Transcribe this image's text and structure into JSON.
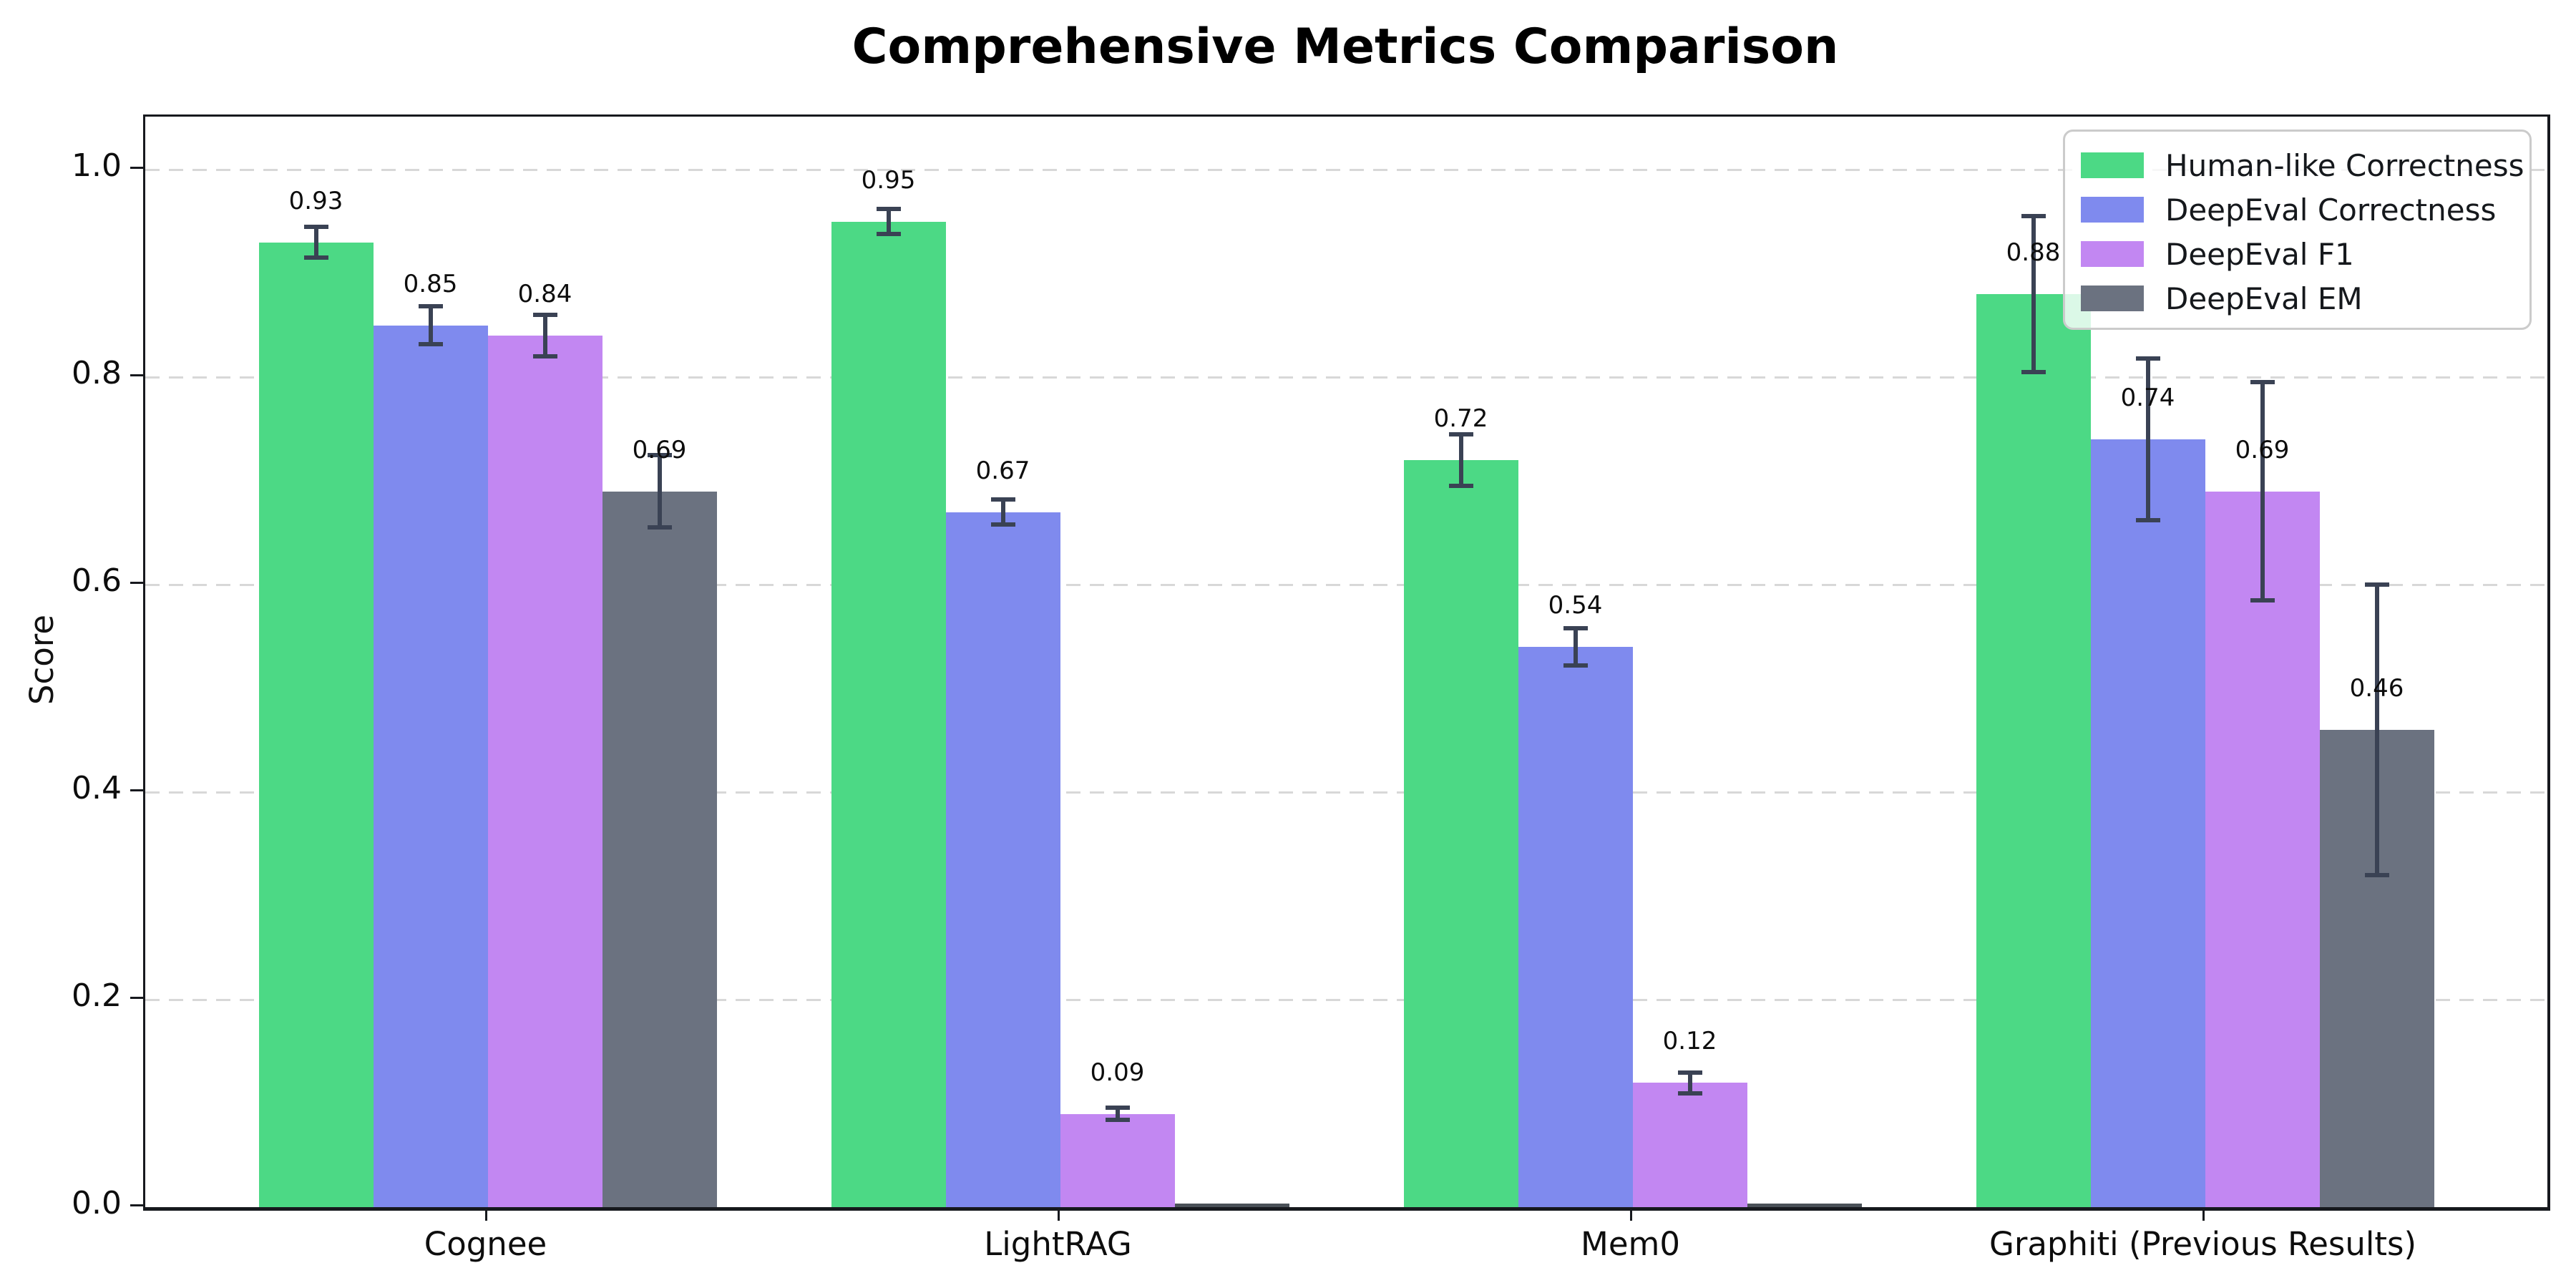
{
  "chart_data": {
    "type": "bar",
    "title": "Comprehensive Metrics Comparison",
    "xlabel": "",
    "ylabel": "Score",
    "categories": [
      "Cognee",
      "LightRAG",
      "Mem0",
      "Graphiti (Previous Results)"
    ],
    "series": [
      {
        "name": "Human-like Correctness",
        "color": "#4cd985",
        "values": [
          0.93,
          0.95,
          0.72,
          0.88
        ],
        "errors": [
          0.015,
          0.012,
          0.025,
          0.075
        ],
        "labels": [
          "0.93",
          "0.95",
          "0.72",
          "0.88"
        ]
      },
      {
        "name": "DeepEval Correctness",
        "color": "#7f8aee",
        "values": [
          0.85,
          0.67,
          0.54,
          0.74
        ],
        "errors": [
          0.018,
          0.012,
          0.018,
          0.078
        ],
        "labels": [
          "0.85",
          "0.67",
          "0.54",
          "0.74"
        ]
      },
      {
        "name": "DeepEval F1",
        "color": "#c287f2",
        "values": [
          0.84,
          0.09,
          0.12,
          0.69
        ],
        "errors": [
          0.02,
          0.006,
          0.01,
          0.105
        ],
        "labels": [
          "0.84",
          "0.09",
          "0.12",
          "0.69"
        ]
      },
      {
        "name": "DeepEval EM",
        "color": "#6b7280",
        "values": [
          0.69,
          0.0,
          0.0,
          0.46
        ],
        "errors": [
          0.035,
          0,
          0,
          0.14
        ],
        "labels": [
          "0.69",
          "",
          "",
          "0.46"
        ]
      }
    ],
    "ylim": [
      0.0,
      1.05
    ],
    "yticks": [
      {
        "label": "0.0",
        "value": 0.0
      },
      {
        "label": "0.2",
        "value": 0.2
      },
      {
        "label": "0.4",
        "value": 0.4
      },
      {
        "label": "0.6",
        "value": 0.6
      },
      {
        "label": "0.8",
        "value": 0.8
      },
      {
        "label": "1.0",
        "value": 1.0
      }
    ],
    "grid": "horizontal-dashed",
    "legend_position": "upper-right",
    "colors": {
      "error_bar": "#3a4254",
      "grid_line": "#d8d8d8",
      "axis_spine": "#17191e",
      "zero_bar_sliver": "#4a5158",
      "background": "#ffffff"
    }
  }
}
